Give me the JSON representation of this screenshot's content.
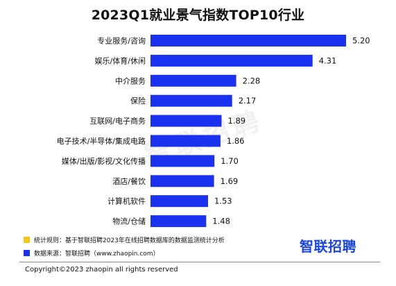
{
  "chart_data": {
    "type": "bar",
    "orientation": "horizontal",
    "title": "2023Q1就业景气指数TOP10行业",
    "categories": [
      "专业服务/咨询",
      "娱乐/体育/休闲",
      "中介服务",
      "保险",
      "互联网/电子商务",
      "电子技术/半导体/集成电路",
      "媒体/出版/影视/文化传播",
      "酒店/餐饮",
      "计算机软件",
      "物流/仓储"
    ],
    "values": [
      5.2,
      4.31,
      2.28,
      2.17,
      1.89,
      1.86,
      1.7,
      1.69,
      1.53,
      1.48
    ],
    "value_labels": [
      "5.20",
      "4.31",
      "2.28",
      "2.17",
      "1.89",
      "1.86",
      "1.70",
      "1.69",
      "1.53",
      "1.48"
    ],
    "xlim": [
      0,
      5.2
    ],
    "grid": false,
    "bar_color": "#1a32f0"
  },
  "watermark": "智联招聘",
  "notes": {
    "rule_text": "统计规则：基于智联招聘2023年在线招聘数据库的数据监测统计分析",
    "rule_color": "#f5c518",
    "source_text": "数据来源：智联招聘（www.zhaopin.com）",
    "source_color": "#1a32f0"
  },
  "brand": {
    "logo_text": "智联招聘",
    "color": "#1a45e6"
  },
  "copyright": "Copyright©2023 zhaopin all rights reserved"
}
